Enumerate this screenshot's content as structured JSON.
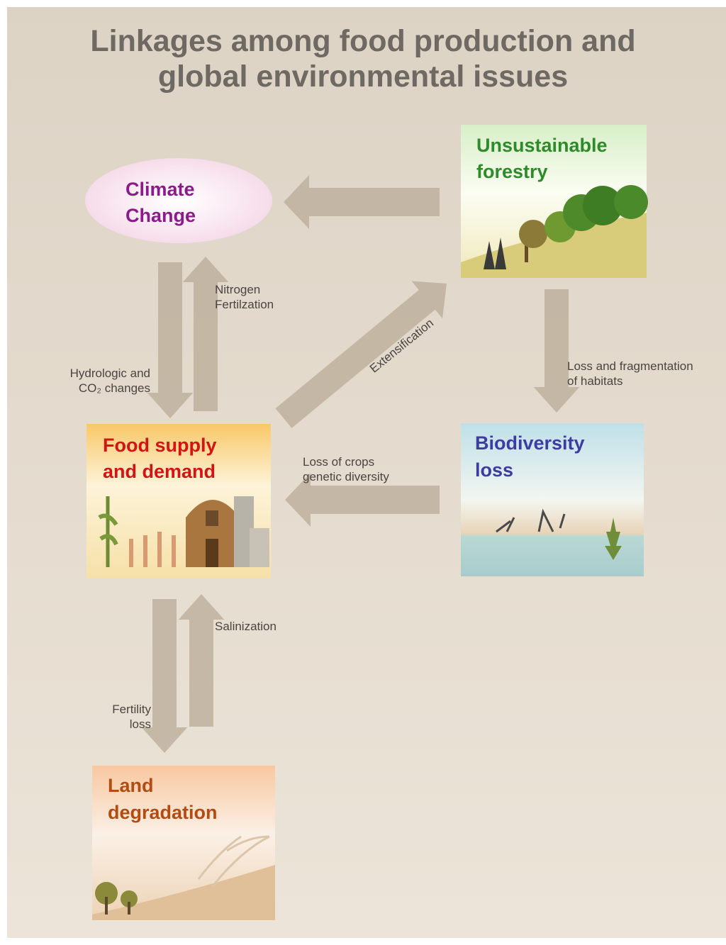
{
  "header": {
    "title": [
      "Linkages among food production and",
      "global environmental issues"
    ]
  },
  "nodes": [
    {
      "label": [
        "Climate",
        "Change"
      ]
    },
    {
      "label": [
        "Unsustainable",
        "forestry"
      ]
    },
    {
      "label": [
        "Food supply",
        "and demand"
      ]
    },
    {
      "label": [
        "Biodiversity",
        "loss"
      ]
    },
    {
      "label": [
        "Land",
        "degradation"
      ]
    }
  ],
  "edges": [
    {
      "label": [
        "Nitrogen",
        "Fertilzation"
      ]
    },
    {
      "label": [
        "Hydrologic and",
        "CO₂ changes"
      ]
    },
    {
      "label": [
        "Extensification"
      ]
    },
    {
      "label": [
        "Loss and fragmentation",
        "of habitats"
      ]
    },
    {
      "label": [
        "Loss of crops",
        "genetic diversity"
      ]
    },
    {
      "label": [
        "Salinization"
      ]
    },
    {
      "label": [
        "Fertility",
        "loss"
      ]
    }
  ]
}
